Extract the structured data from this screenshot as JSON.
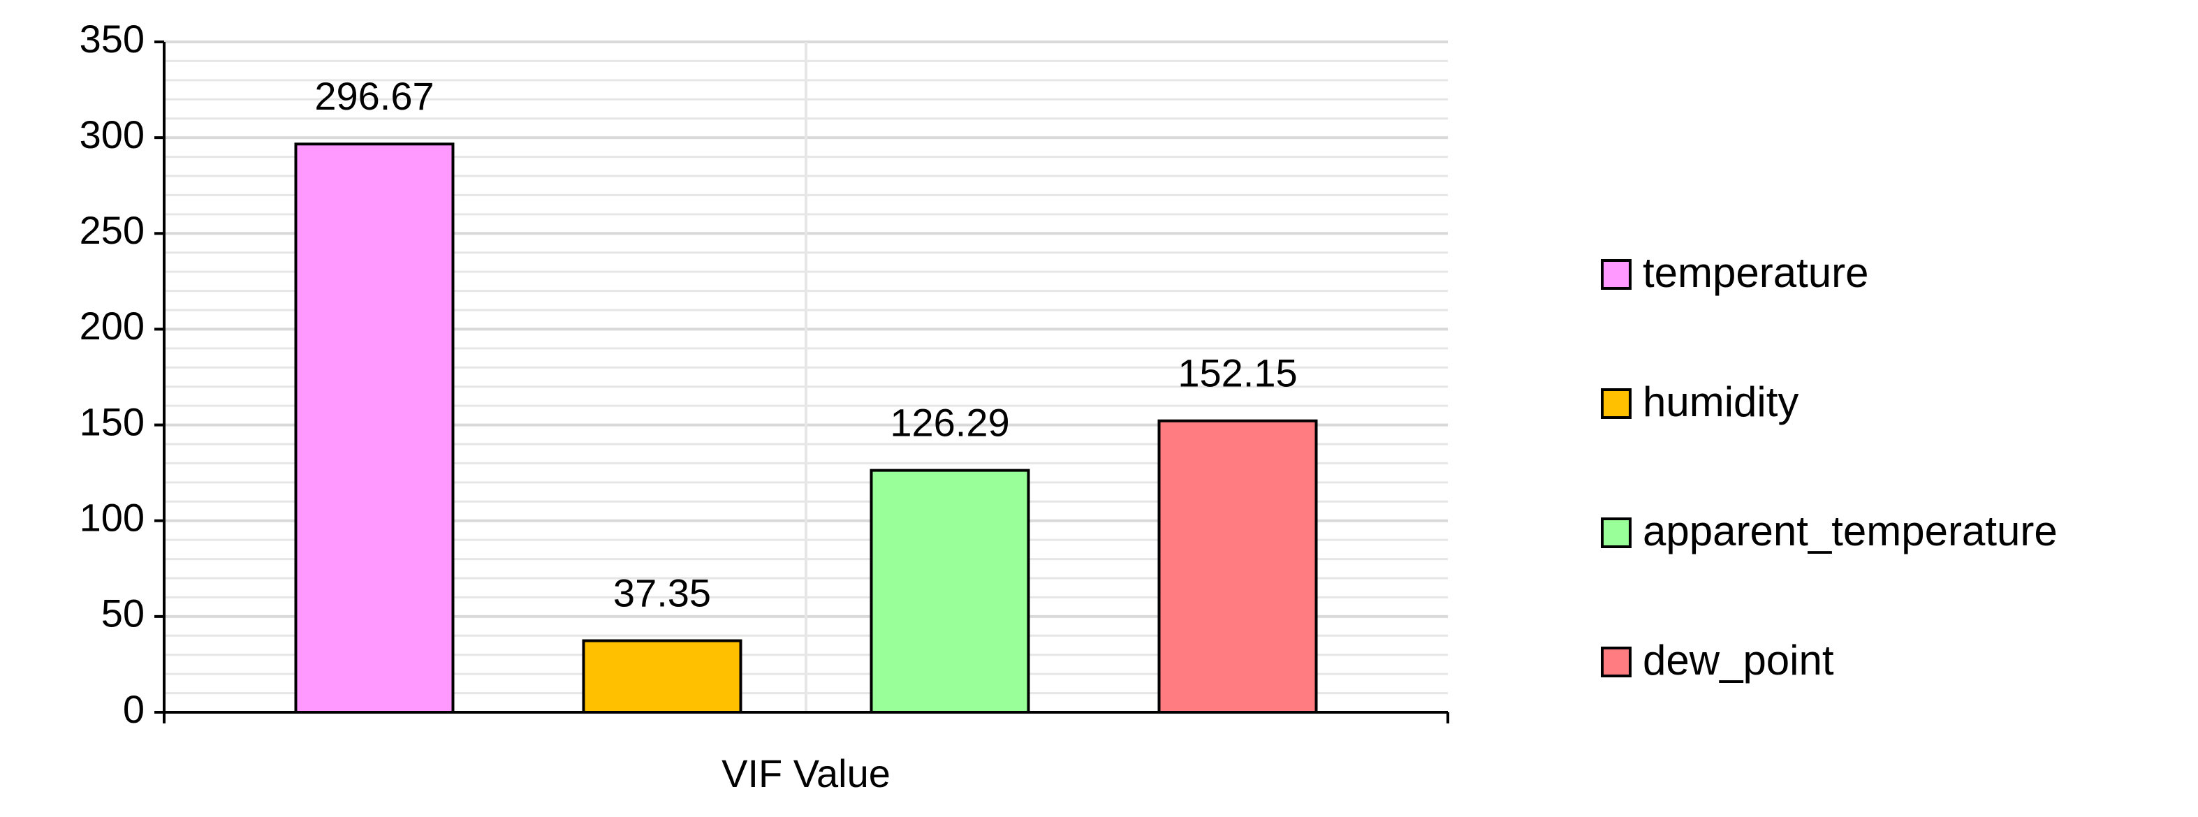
{
  "chart_data": {
    "type": "bar",
    "categories": [
      "VIF Value"
    ],
    "series": [
      {
        "name": "temperature",
        "color": "#FF99FF",
        "values": [
          296.67
        ]
      },
      {
        "name": "humidity",
        "color": "#FFC000",
        "values": [
          37.35
        ]
      },
      {
        "name": "apparent_temperature",
        "color": "#99FF99",
        "values": [
          126.29
        ]
      },
      {
        "name": "dew_point",
        "color": "#FF7C80",
        "values": [
          152.15
        ]
      }
    ],
    "ylim": [
      0,
      350
    ],
    "yticks": [
      0,
      50,
      100,
      150,
      200,
      250,
      300,
      350
    ],
    "grid": true,
    "legend": "right"
  }
}
